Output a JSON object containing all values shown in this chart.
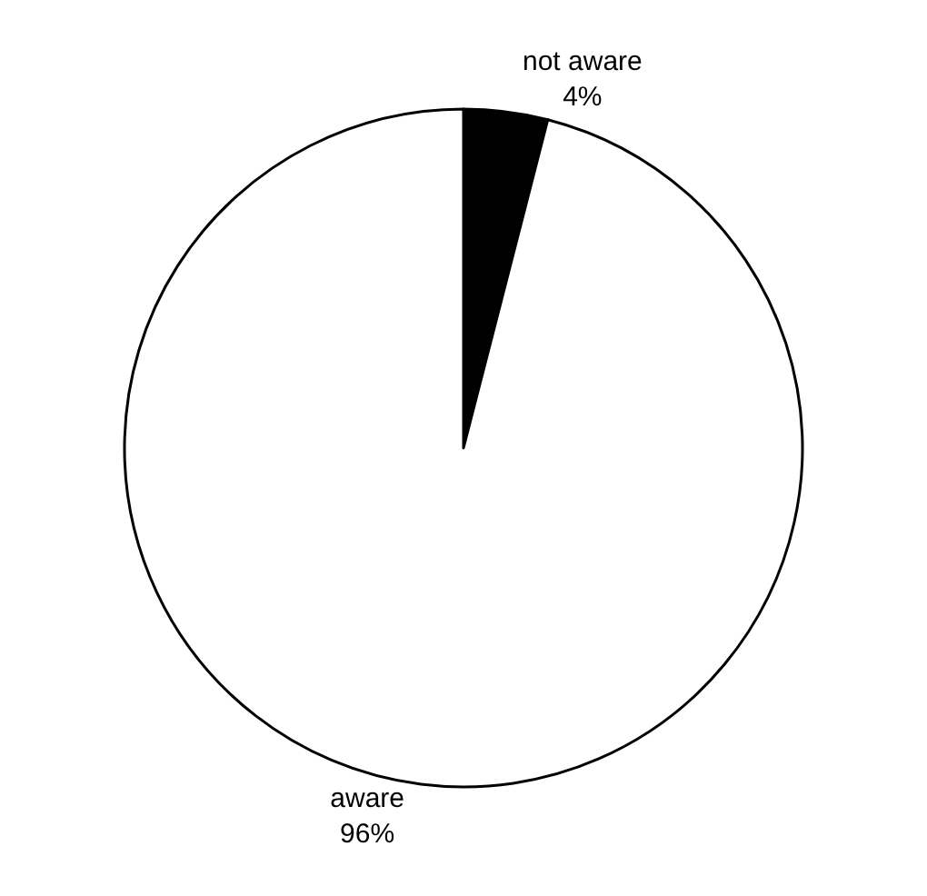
{
  "chart_data": {
    "type": "pie",
    "categories": [
      "not aware",
      "aware"
    ],
    "values": [
      4,
      96
    ],
    "colors": [
      "#000000",
      "#ffffff"
    ],
    "value_labels": [
      "4%",
      "96%"
    ],
    "legend": false
  }
}
